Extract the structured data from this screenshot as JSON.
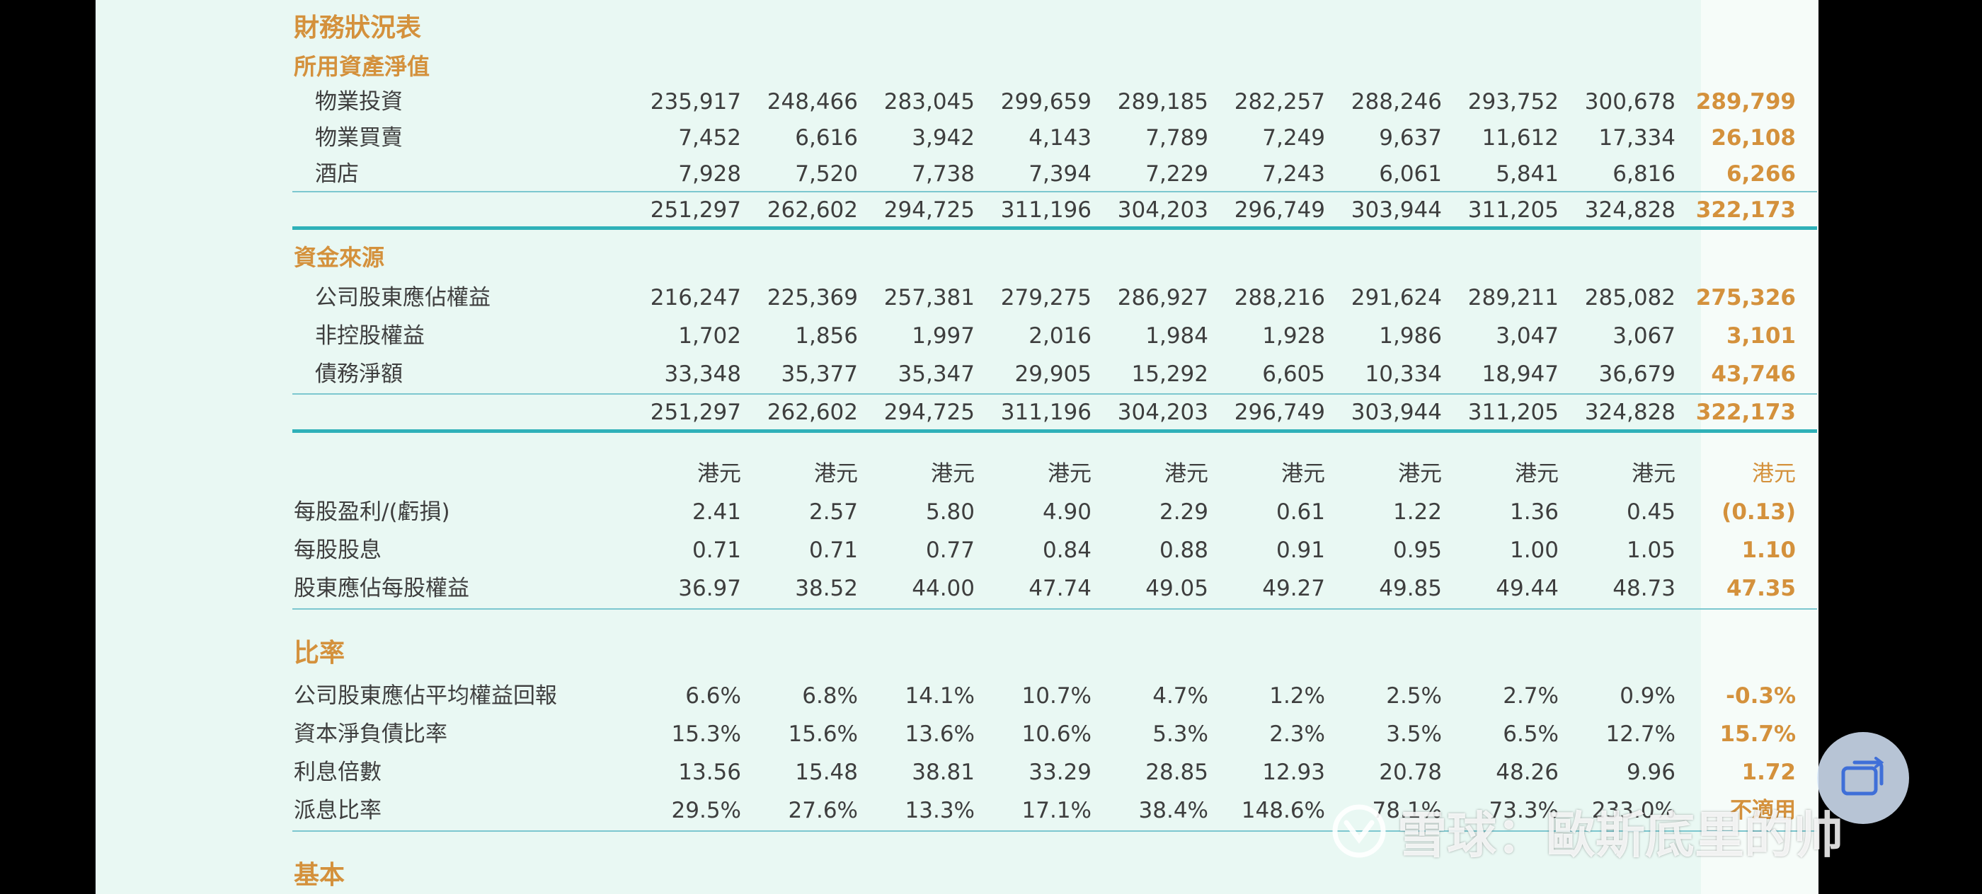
{
  "title": "財務狀況表",
  "net_assets": {
    "heading": "所用資產淨值",
    "rows": [
      {
        "label": "物業投資",
        "values": [
          "235,917",
          "248,466",
          "283,045",
          "299,659",
          "289,185",
          "282,257",
          "288,246",
          "293,752",
          "300,678",
          "289,799"
        ]
      },
      {
        "label": "物業買賣",
        "values": [
          "7,452",
          "6,616",
          "3,942",
          "4,143",
          "7,789",
          "7,249",
          "9,637",
          "11,612",
          "17,334",
          "26,108"
        ]
      },
      {
        "label": "酒店",
        "values": [
          "7,928",
          "7,520",
          "7,738",
          "7,394",
          "7,229",
          "7,243",
          "6,061",
          "5,841",
          "6,816",
          "6,266"
        ]
      }
    ],
    "total": [
      "251,297",
      "262,602",
      "294,725",
      "311,196",
      "304,203",
      "296,749",
      "303,944",
      "311,205",
      "324,828",
      "322,173"
    ]
  },
  "funding": {
    "heading": "資金來源",
    "rows": [
      {
        "label": "公司股東應佔權益",
        "values": [
          "216,247",
          "225,369",
          "257,381",
          "279,275",
          "286,927",
          "288,216",
          "291,624",
          "289,211",
          "285,082",
          "275,326"
        ]
      },
      {
        "label": "非控股權益",
        "values": [
          "1,702",
          "1,856",
          "1,997",
          "2,016",
          "1,984",
          "1,928",
          "1,986",
          "3,047",
          "3,067",
          "3,101"
        ]
      },
      {
        "label": "債務淨額",
        "values": [
          "33,348",
          "35,377",
          "35,347",
          "29,905",
          "15,292",
          "6,605",
          "10,334",
          "18,947",
          "36,679",
          "43,746"
        ]
      }
    ],
    "total": [
      "251,297",
      "262,602",
      "294,725",
      "311,196",
      "304,203",
      "296,749",
      "303,944",
      "311,205",
      "324,828",
      "322,173"
    ]
  },
  "per_share": {
    "units": [
      "港元",
      "港元",
      "港元",
      "港元",
      "港元",
      "港元",
      "港元",
      "港元",
      "港元",
      "港元"
    ],
    "rows": [
      {
        "label": "每股盈利/(虧損)",
        "values": [
          "2.41",
          "2.57",
          "5.80",
          "4.90",
          "2.29",
          "0.61",
          "1.22",
          "1.36",
          "0.45",
          "(0.13)"
        ]
      },
      {
        "label": "每股股息",
        "values": [
          "0.71",
          "0.71",
          "0.77",
          "0.84",
          "0.88",
          "0.91",
          "0.95",
          "1.00",
          "1.05",
          "1.10"
        ]
      },
      {
        "label": "股東應佔每股權益",
        "values": [
          "36.97",
          "38.52",
          "44.00",
          "47.74",
          "49.05",
          "49.27",
          "49.85",
          "49.44",
          "48.73",
          "47.35"
        ]
      }
    ]
  },
  "ratios": {
    "heading": "比率",
    "rows": [
      {
        "label": "公司股東應佔平均權益回報",
        "values": [
          "6.6%",
          "6.8%",
          "14.1%",
          "10.7%",
          "4.7%",
          "1.2%",
          "2.5%",
          "2.7%",
          "0.9%",
          "-0.3%"
        ]
      },
      {
        "label": "資本淨負債比率",
        "values": [
          "15.3%",
          "15.6%",
          "13.6%",
          "10.6%",
          "5.3%",
          "2.3%",
          "3.5%",
          "6.5%",
          "12.7%",
          "15.7%"
        ]
      },
      {
        "label": "利息倍數",
        "values": [
          "13.56",
          "15.48",
          "38.81",
          "33.29",
          "28.85",
          "12.93",
          "20.78",
          "48.26",
          "9.96",
          "1.72"
        ]
      },
      {
        "label": "派息比率",
        "values": [
          "29.5%",
          "27.6%",
          "13.3%",
          "17.1%",
          "38.4%",
          "148.6%",
          "78.1%",
          "73.3%",
          "233.0%",
          "不適用"
        ]
      }
    ]
  },
  "basic_heading": "基本",
  "watermark": "雪球：歐斯底里的帅",
  "icons": {
    "fab": "recent-apps-icon",
    "watermark_logo": "snowball-logo-icon"
  },
  "colors": {
    "accent": "#d4913c",
    "rule": "#2fb1b8",
    "text": "#3e3e3e",
    "page": "#e9f8f3"
  }
}
